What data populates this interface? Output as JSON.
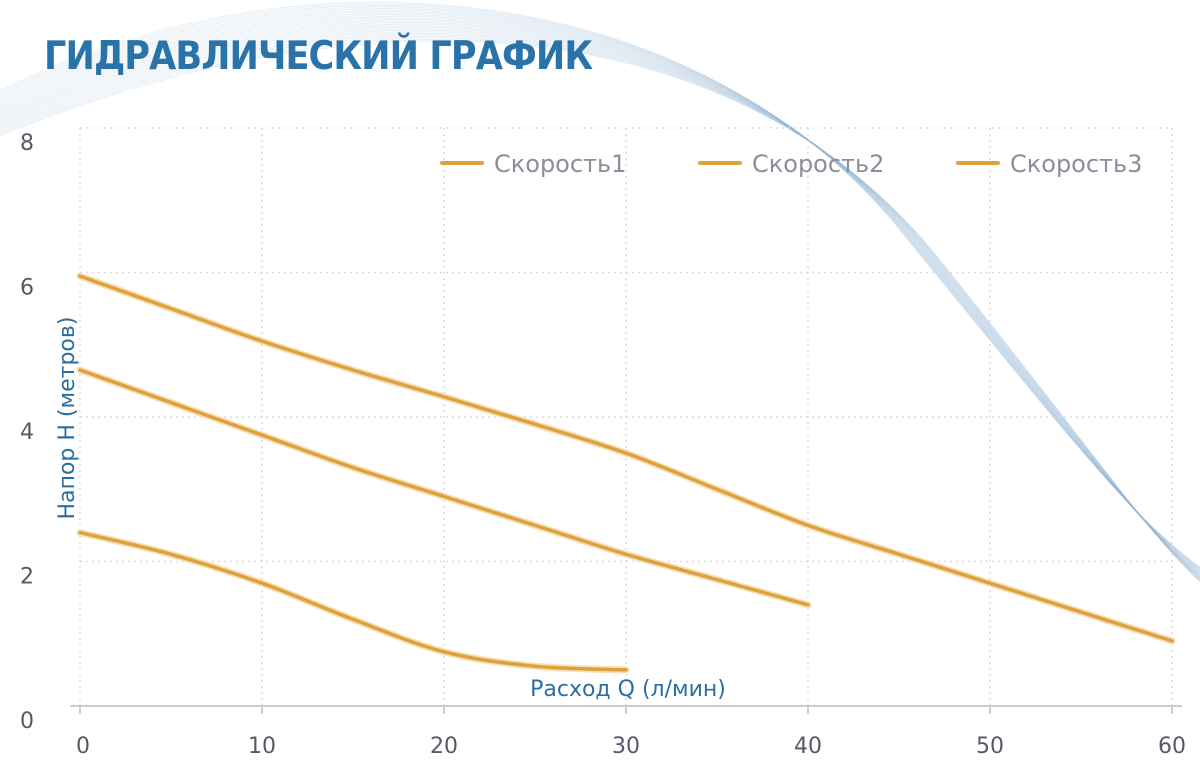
{
  "title": "ГИДРАВЛИЧЕСКИЙ ГРАФИК",
  "colors": {
    "series": "#dda13e",
    "title": "#2a73a8",
    "grid": "#d9dce2",
    "axis_label": "#2c6f9f",
    "ticks": "#555a66",
    "legend_text": "#8a8f99"
  },
  "chart_data": {
    "type": "line",
    "title": "ГИДРАВЛИЧЕСКИЙ ГРАФИК",
    "xlabel": "Расход Q (л/мин)",
    "ylabel": "Напор Н (метров)",
    "xlim": [
      0,
      60
    ],
    "ylim": [
      0,
      8
    ],
    "x_ticks": [
      "0",
      "10",
      "20",
      "30",
      "40",
      "50",
      "60"
    ],
    "y_ticks": [
      "0",
      "2",
      "4",
      "6",
      "8"
    ],
    "grid": true,
    "legend_position": "top-right",
    "series": [
      {
        "name": "Скорость1",
        "x": [
          0,
          5,
          10,
          15,
          20,
          25,
          30,
          35,
          40,
          45,
          50,
          55,
          60
        ],
        "y": [
          5.95,
          5.5,
          5.05,
          4.65,
          4.28,
          3.9,
          3.5,
          3.0,
          2.5,
          2.1,
          1.7,
          1.3,
          0.9
        ]
      },
      {
        "name": "Скорость2",
        "x": [
          0,
          5,
          10,
          15,
          20,
          25,
          30,
          35,
          40
        ],
        "y": [
          4.65,
          4.2,
          3.75,
          3.3,
          2.9,
          2.5,
          2.1,
          1.75,
          1.4
        ]
      },
      {
        "name": "Скорость3",
        "x": [
          0,
          5,
          10,
          15,
          20,
          25,
          30
        ],
        "y": [
          2.4,
          2.1,
          1.7,
          1.2,
          0.75,
          0.55,
          0.5
        ]
      }
    ]
  }
}
